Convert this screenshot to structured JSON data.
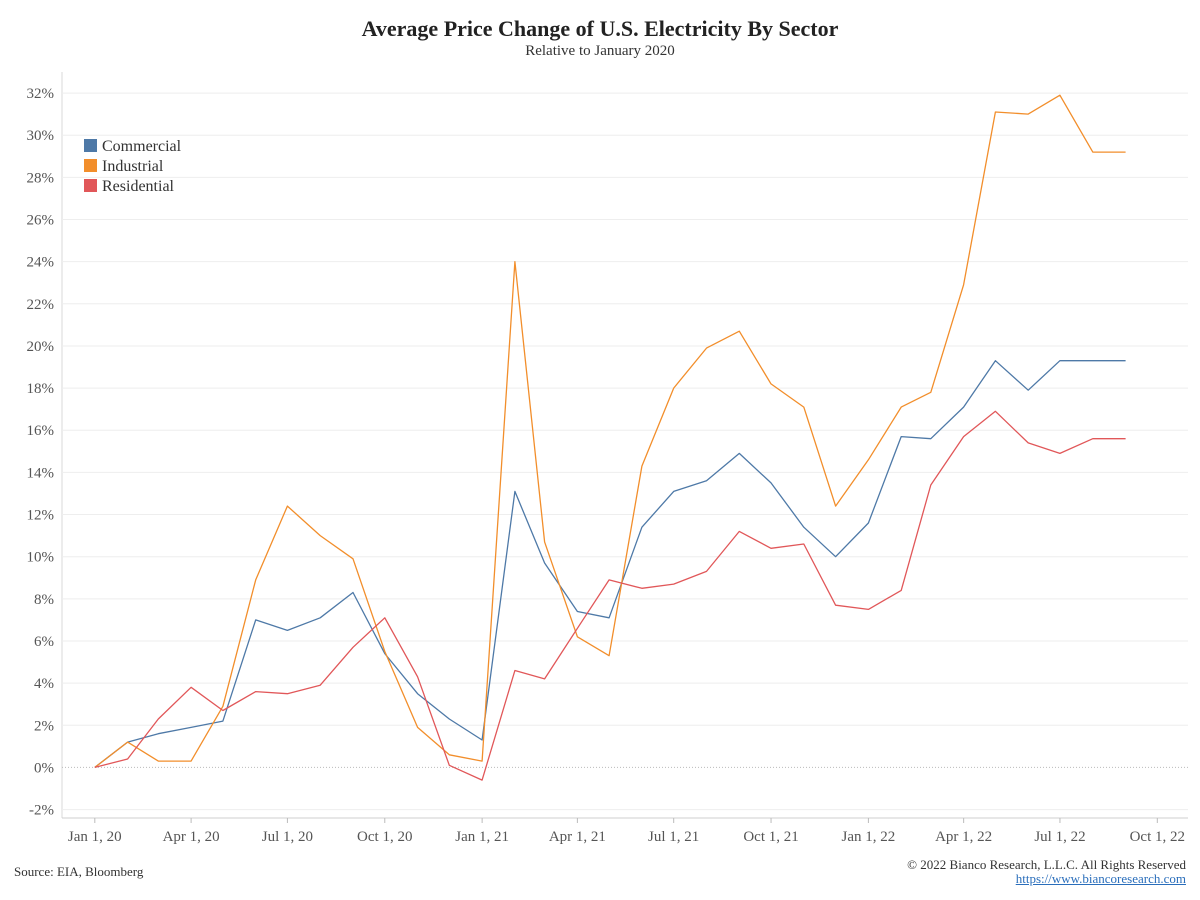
{
  "chart_data": {
    "type": "line",
    "title": "Average Price Change of U.S. Electricity By Sector",
    "subtitle": "Relative to January 2020",
    "xlabel": "",
    "ylabel": "",
    "x_range": [
      "2019-12-01",
      "2022-10-30"
    ],
    "ylim": [
      -2.4,
      33
    ],
    "y_ticks": [
      -2,
      0,
      2,
      4,
      6,
      8,
      10,
      12,
      14,
      16,
      18,
      20,
      22,
      24,
      26,
      28,
      30,
      32
    ],
    "y_tick_labels": [
      "-2%",
      "0%",
      "2%",
      "4%",
      "6%",
      "8%",
      "10%",
      "12%",
      "14%",
      "16%",
      "18%",
      "20%",
      "22%",
      "24%",
      "26%",
      "28%",
      "30%",
      "32%"
    ],
    "x_ticks": [
      "2020-01-01",
      "2020-04-01",
      "2020-07-01",
      "2020-10-01",
      "2021-01-01",
      "2021-04-01",
      "2021-07-01",
      "2021-10-01",
      "2022-01-01",
      "2022-04-01",
      "2022-07-01",
      "2022-10-01"
    ],
    "x_tick_labels": [
      "Jan 1, 20",
      "Apr 1, 20",
      "Jul 1, 20",
      "Oct 1, 20",
      "Jan 1, 21",
      "Apr 1, 21",
      "Jul 1, 21",
      "Oct 1, 21",
      "Jan 1, 22",
      "Apr 1, 22",
      "Jul 1, 22",
      "Oct 1, 22"
    ],
    "x": [
      "2020-01-01",
      "2020-02-01",
      "2020-03-01",
      "2020-04-01",
      "2020-05-01",
      "2020-06-01",
      "2020-07-01",
      "2020-08-01",
      "2020-09-01",
      "2020-10-01",
      "2020-11-01",
      "2020-12-01",
      "2021-01-01",
      "2021-02-01",
      "2021-03-01",
      "2021-04-01",
      "2021-05-01",
      "2021-06-01",
      "2021-07-01",
      "2021-08-01",
      "2021-09-01",
      "2021-10-01",
      "2021-11-01",
      "2021-12-01",
      "2022-01-01",
      "2022-02-01",
      "2022-03-01",
      "2022-04-01",
      "2022-05-01",
      "2022-06-01",
      "2022-07-01",
      "2022-08-01",
      "2022-09-01"
    ],
    "series": [
      {
        "name": "Commercial",
        "color": "#4e79a7",
        "values": [
          0,
          1.2,
          1.6,
          1.9,
          2.2,
          7.0,
          6.5,
          7.1,
          8.3,
          5.4,
          3.5,
          2.3,
          1.3,
          13.1,
          9.7,
          7.4,
          7.1,
          11.4,
          13.1,
          13.6,
          14.9,
          13.5,
          11.4,
          10.0,
          11.6,
          15.7,
          15.6,
          17.1,
          19.3,
          17.9,
          19.3,
          19.3,
          19.3
        ]
      },
      {
        "name": "Industrial",
        "color": "#f28e2b",
        "values": [
          0,
          1.2,
          0.3,
          0.3,
          2.9,
          8.9,
          12.4,
          11.0,
          9.9,
          5.5,
          1.9,
          0.6,
          0.3,
          24.0,
          10.7,
          6.2,
          5.3,
          14.3,
          18.0,
          19.9,
          20.7,
          18.2,
          17.1,
          12.4,
          14.6,
          17.1,
          17.8,
          22.9,
          31.1,
          31.0,
          31.9,
          29.2,
          29.2
        ]
      },
      {
        "name": "Residential",
        "color": "#e15759",
        "values": [
          0,
          0.4,
          2.3,
          3.8,
          2.7,
          3.6,
          3.5,
          3.9,
          5.7,
          7.1,
          4.3,
          0.1,
          -0.6,
          4.6,
          4.2,
          6.6,
          8.9,
          8.5,
          8.7,
          9.3,
          11.2,
          10.4,
          10.6,
          7.7,
          7.5,
          8.4,
          13.4,
          15.7,
          16.9,
          15.4,
          14.9,
          15.6,
          15.6
        ]
      }
    ],
    "legend_position": "top-left",
    "grid": "horizontal"
  },
  "footer": {
    "source": "Source: EIA, Bloomberg",
    "copyright": "© 2022 Bianco Research, L.L.C. All Rights Reserved",
    "url": "https://www.biancoresearch.com"
  }
}
